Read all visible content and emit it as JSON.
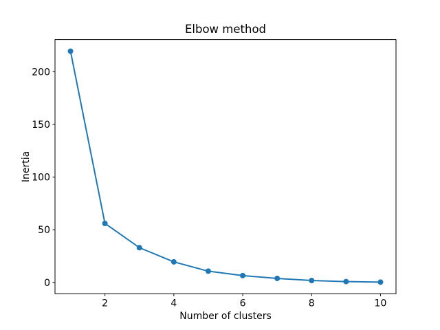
{
  "figure": {
    "background_color": "#ffffff"
  },
  "chart_data": {
    "type": "line",
    "title": "Elbow method",
    "xlabel": "Number of clusters",
    "ylabel": "Inertia",
    "series": [
      {
        "name": "inertia",
        "x": [
          1,
          2,
          3,
          4,
          5,
          6,
          7,
          8,
          9,
          10
        ],
        "y": [
          219.5,
          56,
          33,
          19.5,
          10.7,
          6.5,
          3.8,
          1.8,
          0.8,
          0.3
        ],
        "color": "#1f77b4",
        "marker": "circle"
      }
    ],
    "xticks": [
      2,
      4,
      6,
      8,
      10
    ],
    "yticks": [
      0,
      50,
      100,
      150,
      200
    ],
    "xlim": [
      0.55,
      10.45
    ],
    "ylim": [
      -10.7,
      230.5
    ],
    "grid": false,
    "legend": null,
    "spine_color": "#000000",
    "text_color": "#000000"
  }
}
